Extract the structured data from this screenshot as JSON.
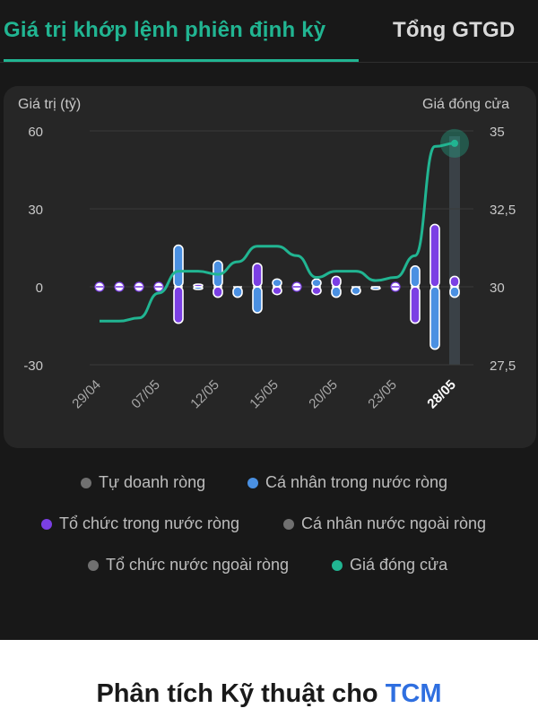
{
  "tabs": {
    "active_label": "Giá trị khớp lệnh phiên định kỳ",
    "inactive_label": "Tổng GTGD"
  },
  "colors": {
    "accent": "#21b592",
    "card_bg": "#262626",
    "page_bg": "#181818",
    "ca_nhan_trong_nuoc": "#4a90e2",
    "to_chuc_trong_nuoc": "#7b3fe4",
    "gray_series": "#707070",
    "highlight_col": "#3a4147"
  },
  "chart_data": {
    "type": "bar+line",
    "left_axis_title": "Giá trị (tỷ)",
    "right_axis_title": "Giá đóng cửa",
    "left_ticks": [
      "60",
      "30",
      "0",
      "-30"
    ],
    "right_ticks": [
      "35",
      "32,5",
      "30",
      "27,5"
    ],
    "ylim_left": [
      -30,
      60
    ],
    "ylim_right": [
      27.5,
      35
    ],
    "x_labels": [
      "29/04",
      "07/05",
      "12/05",
      "15/05",
      "20/05",
      "23/05",
      "28/05"
    ],
    "x_label_indices": [
      0,
      3,
      6,
      9,
      12,
      15,
      18
    ],
    "highlighted_index": 18,
    "sessions": 19,
    "series": [
      {
        "name": "Cá nhân trong nước ròng",
        "values": [
          0,
          0,
          0,
          0,
          16,
          -1,
          10,
          -4,
          -10,
          3,
          0,
          3,
          -4,
          -3,
          -1,
          0,
          8,
          -24,
          -4
        ]
      },
      {
        "name": "Tổ chức trong nước ròng",
        "values": [
          0,
          0,
          0,
          0,
          -14,
          1,
          -4,
          0,
          9,
          -3,
          0,
          -3,
          4,
          0,
          0,
          0,
          -14,
          24,
          4
        ]
      },
      {
        "name": "Giá đóng cửa",
        "values": [
          28.9,
          28.9,
          29.0,
          29.8,
          30.5,
          30.5,
          30.4,
          30.8,
          31.3,
          31.3,
          31.0,
          30.3,
          30.5,
          30.5,
          30.2,
          30.3,
          31.0,
          34.5,
          34.6
        ]
      }
    ]
  },
  "legend": [
    {
      "label": "Tự doanh ròng",
      "color": "#707070"
    },
    {
      "label": "Cá nhân trong nước ròng",
      "color": "#4a90e2"
    },
    {
      "label": "Tổ chức trong nước ròng",
      "color": "#7b3fe4"
    },
    {
      "label": "Cá nhân nước ngoài ròng",
      "color": "#707070"
    },
    {
      "label": "Tổ chức nước ngoài ròng",
      "color": "#707070"
    },
    {
      "label": "Giá đóng cửa",
      "color": "#21b592"
    }
  ],
  "bottom": {
    "title_prefix": "Phân tích Kỹ thuật cho",
    "ticker": "TCM"
  }
}
